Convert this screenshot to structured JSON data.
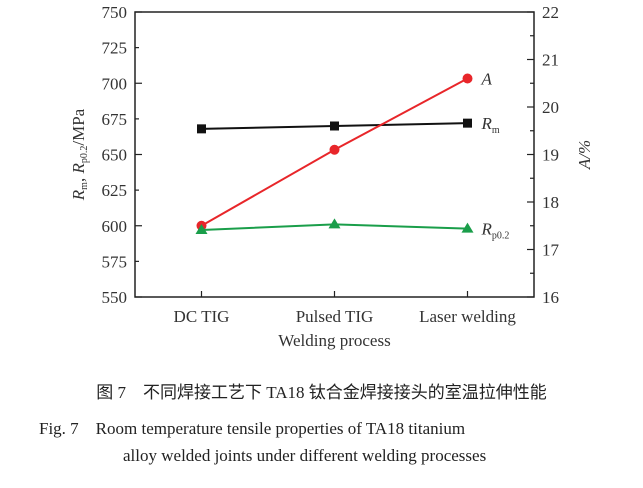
{
  "chart_data": {
    "type": "line",
    "categories": [
      "DC TIG",
      "Pulsed TIG",
      "Laser welding"
    ],
    "xlabel": "Welding process",
    "ylabel_left": {
      "main": "R",
      "sub1": "m",
      "sep": ", ",
      "main2": "R",
      "sub2": "p0.2",
      "unit": "/MPa"
    },
    "ylabel_right": "A/%",
    "ylim_left": [
      550,
      750
    ],
    "yticks_left": [
      550,
      575,
      600,
      625,
      650,
      675,
      700,
      725,
      750
    ],
    "ylim_right": [
      16,
      22
    ],
    "yticks_right": [
      16,
      17,
      18,
      19,
      20,
      21,
      22
    ],
    "grid": false,
    "series": [
      {
        "name": "R",
        "sub": "m",
        "axis": "left",
        "marker": "square",
        "color": "#111111",
        "values": [
          668,
          670,
          672
        ]
      },
      {
        "name": "A",
        "sub": "",
        "axis": "right",
        "marker": "circle",
        "color": "#e8262a",
        "values": [
          17.5,
          19.1,
          20.6
        ]
      },
      {
        "name": "R",
        "sub": "p0.2",
        "axis": "left",
        "marker": "triangle",
        "color": "#1a9e4a",
        "values": [
          597,
          601,
          598
        ]
      }
    ]
  },
  "caption": {
    "cn": "图 7　不同焊接工艺下 TA18 钛合金焊接接头的室温拉伸性能",
    "en_line1": "Fig. 7　Room temperature tensile properties of TA18 titanium",
    "en_line2": "alloy welded joints under different welding processes"
  }
}
